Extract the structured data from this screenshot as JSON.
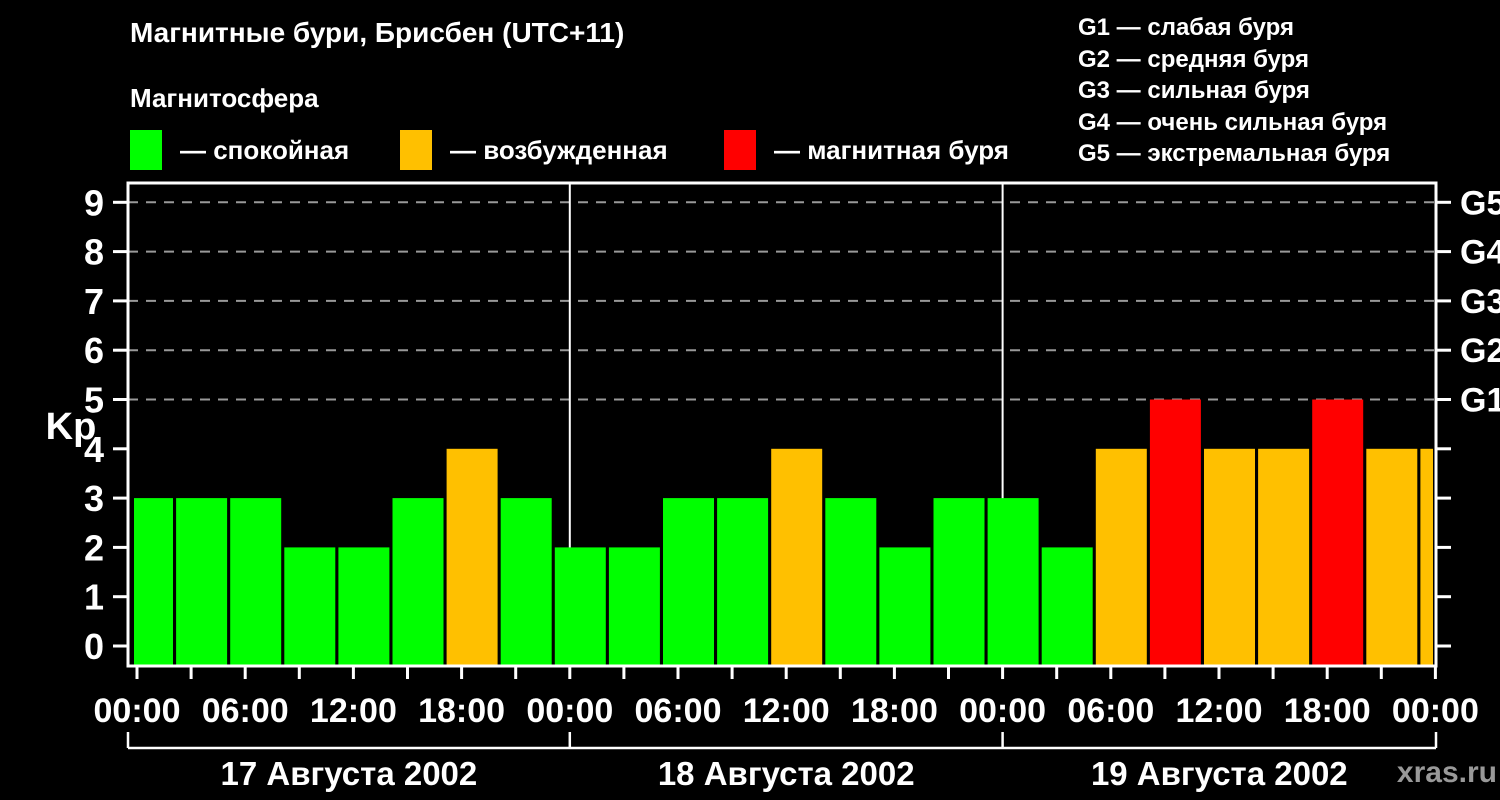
{
  "title": "Магнитные бури, Брисбен (UTC+11)",
  "subtitle": "Магнитосфера",
  "legend": {
    "items": [
      {
        "name": "quiet",
        "label": "— спокойная",
        "color": "#00ff00"
      },
      {
        "name": "active",
        "label": "— возбужденная",
        "color": "#ffc000"
      },
      {
        "name": "storm",
        "label": "— магнитная буря",
        "color": "#ff0000"
      }
    ]
  },
  "storm_scale_legend": [
    {
      "level": "G1",
      "label": "— слабая буря"
    },
    {
      "level": "G2",
      "label": "— средняя буря"
    },
    {
      "level": "G3",
      "label": "— сильная буря"
    },
    {
      "level": "G4",
      "label": "— очень сильная буря"
    },
    {
      "level": "G5",
      "label": "— экстремальная буря"
    }
  ],
  "watermark": "xras.ru",
  "chart_data": {
    "type": "bar",
    "title": "Магнитные бури, Брисбен (UTC+11)",
    "ylabel": "Kp",
    "ylim": [
      0,
      9
    ],
    "yticks": [
      0,
      1,
      2,
      3,
      4,
      5,
      6,
      7,
      8,
      9
    ],
    "gridlines_at": [
      5,
      6,
      7,
      8,
      9
    ],
    "grid": "dashed horizontal lines at Kp 5-9 only",
    "right_axis_labels": [
      {
        "kp": 5,
        "label": "G1"
      },
      {
        "kp": 6,
        "label": "G2"
      },
      {
        "kp": 7,
        "label": "G3"
      },
      {
        "kp": 8,
        "label": "G4"
      },
      {
        "kp": 9,
        "label": "G5"
      }
    ],
    "x_time_labels": [
      "00:00",
      "06:00",
      "12:00",
      "18:00"
    ],
    "hours_per_bar": 3,
    "days": [
      {
        "date": "17 Августа 2002",
        "kp": [
          3,
          3,
          3,
          2,
          2,
          3,
          4,
          3
        ]
      },
      {
        "date": "18 Августа 2002",
        "kp": [
          2,
          2,
          3,
          3,
          4,
          3,
          2,
          3
        ]
      },
      {
        "date": "19 Августа 2002",
        "kp": [
          3,
          2,
          4,
          5,
          4,
          4,
          5,
          4
        ]
      }
    ],
    "partial_next_bar_kp": 4,
    "colors": {
      "quiet": "#00ff00",
      "active": "#ffc000",
      "storm": "#ff0000"
    },
    "color_rule": "kp<=3 quiet(green), kp=4 active(orange), kp>=5 storm(red)",
    "axis_color": "#ffffff",
    "gridline_color": "#999999"
  }
}
